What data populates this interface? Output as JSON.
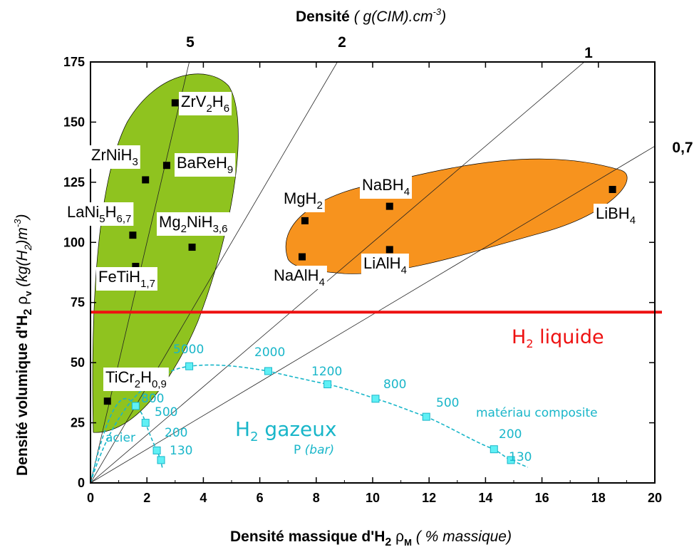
{
  "chart_data": {
    "type": "scatter",
    "xlabel": {
      "main": "Densité massique d'H",
      "sub": "2",
      "sym": " ρ",
      "symsub": "M",
      "rest": " ( % massique)"
    },
    "ylabel": {
      "main": "Densité volumique d'H",
      "sub": "2",
      "sym": " ρ",
      "symsub": "v",
      "rest": " (kg(H",
      "rest_sub": "2",
      "rest_end": ")m",
      "rest_sup": "-3",
      "close": ")"
    },
    "top_label": {
      "main": "Densité",
      "rest": " ( g(CIM).cm",
      "sup": "-3",
      "close": ")"
    },
    "xlim": [
      0,
      20
    ],
    "ylim": [
      0,
      175
    ],
    "x_ticks": [
      "0",
      "2",
      "4",
      "6",
      "8",
      "10",
      "12",
      "14",
      "16",
      "18",
      "20"
    ],
    "y_ticks": [
      "0",
      "25",
      "50",
      "75",
      "100",
      "125",
      "150",
      "175"
    ],
    "density_lines": [
      {
        "label": "5",
        "density": 5
      },
      {
        "label": "2",
        "density": 2
      },
      {
        "label": "1",
        "density": 1
      },
      {
        "label": "0,7",
        "density": 0.7
      }
    ],
    "liquid_h2": {
      "y": 71,
      "label": "H",
      "sub": "2",
      "rest": " liquide",
      "color": "#ee1111"
    },
    "regions": [
      {
        "name": "green",
        "color": "#8fc31f"
      },
      {
        "name": "orange",
        "color": "#f7931e"
      }
    ],
    "compounds": [
      {
        "x": 3.0,
        "y": 158,
        "parts": [
          [
            "ZrV",
            ""
          ],
          [
            "2",
            "s"
          ],
          [
            "H",
            ""
          ],
          [
            "6",
            "s"
          ]
        ]
      },
      {
        "x": 1.95,
        "y": 126,
        "parts": [
          [
            "ZrNiH",
            ""
          ],
          [
            "3",
            "s"
          ]
        ]
      },
      {
        "x": 2.7,
        "y": 132,
        "parts": [
          [
            "BaReH",
            ""
          ],
          [
            "9",
            "s"
          ]
        ]
      },
      {
        "x": 1.5,
        "y": 103,
        "parts": [
          [
            "LaNi",
            ""
          ],
          [
            "5",
            "s"
          ],
          [
            "H",
            ""
          ],
          [
            "6,7",
            "s"
          ]
        ]
      },
      {
        "x": 3.6,
        "y": 98,
        "parts": [
          [
            "Mg",
            ""
          ],
          [
            "2",
            "s"
          ],
          [
            "NiH",
            ""
          ],
          [
            "3,6",
            "s"
          ]
        ]
      },
      {
        "x": 1.6,
        "y": 90,
        "parts": [
          [
            "FeTiH",
            ""
          ],
          [
            "1,7",
            "s"
          ]
        ]
      },
      {
        "x": 7.6,
        "y": 109,
        "parts": [
          [
            "MgH",
            ""
          ],
          [
            "2",
            "s"
          ]
        ]
      },
      {
        "x": 10.6,
        "y": 115,
        "parts": [
          [
            "NaBH",
            ""
          ],
          [
            "4",
            "s"
          ]
        ]
      },
      {
        "x": 7.5,
        "y": 94,
        "parts": [
          [
            "NaAlH",
            ""
          ],
          [
            "4",
            "s"
          ]
        ]
      },
      {
        "x": 10.6,
        "y": 97,
        "parts": [
          [
            "LiAlH",
            ""
          ],
          [
            "4",
            "s"
          ]
        ]
      },
      {
        "x": 18.5,
        "y": 122,
        "parts": [
          [
            "LiBH",
            ""
          ],
          [
            "4",
            "s"
          ]
        ]
      },
      {
        "x": 0.6,
        "y": 34,
        "parts": [
          [
            "TiCr",
            ""
          ],
          [
            "2",
            "s"
          ],
          [
            "H",
            ""
          ],
          [
            "0,9",
            "s"
          ]
        ]
      }
    ],
    "gas": {
      "color": "#19b6c9",
      "title": {
        "main": "H",
        "sub": "2",
        "rest": " gazeux"
      },
      "pressure_label": {
        "main": "P ",
        "italic": "(bar)"
      },
      "steel_label": "acier",
      "composite_label": "matériau composite",
      "steel_points": [
        {
          "x": 1.6,
          "y": 32,
          "label": "800"
        },
        {
          "x": 1.95,
          "y": 25,
          "label": "500"
        },
        {
          "x": 2.35,
          "y": 13.5,
          "label": "200"
        },
        {
          "x": 2.5,
          "y": 9.5,
          "label": "130"
        }
      ],
      "composite_points": [
        {
          "x": 3.5,
          "y": 48.5,
          "label": "5000"
        },
        {
          "x": 6.3,
          "y": 46.5,
          "label": "2000"
        },
        {
          "x": 8.4,
          "y": 41,
          "label": "1200"
        },
        {
          "x": 10.1,
          "y": 35,
          "label": "800"
        },
        {
          "x": 11.9,
          "y": 27.5,
          "label": "500"
        },
        {
          "x": 14.3,
          "y": 14,
          "label": "200"
        },
        {
          "x": 14.9,
          "y": 9.5,
          "label": "130"
        }
      ]
    }
  }
}
